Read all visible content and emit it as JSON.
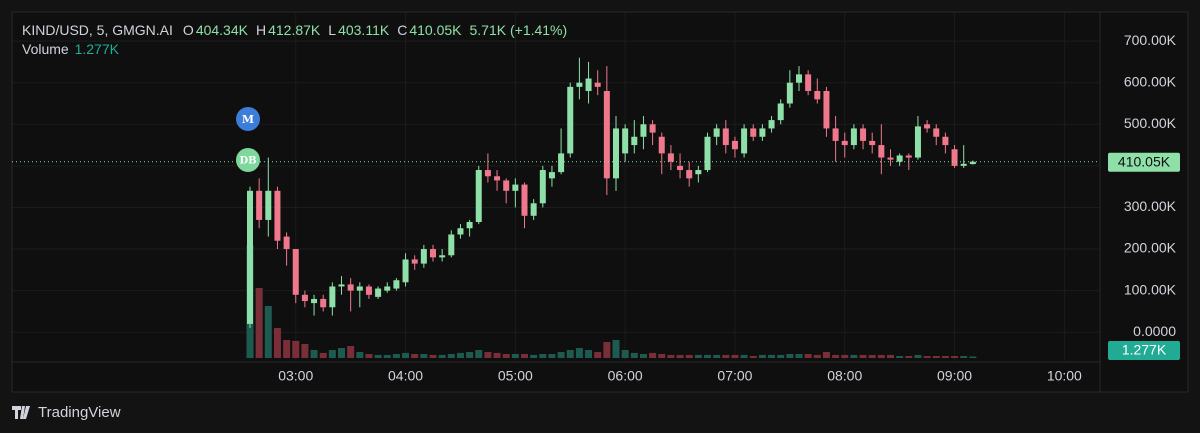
{
  "chart_data": {
    "type": "candlestick",
    "title": "KIND/USD, 5, GMGN.AI",
    "ohlc_legend": [
      {
        "label": "O",
        "value": "404.34K"
      },
      {
        "label": "H",
        "value": "412.87K"
      },
      {
        "label": "L",
        "value": "403.11K"
      },
      {
        "label": "C",
        "value": "410.05K"
      }
    ],
    "change": "5.71K (+1.41%)",
    "volume_title": "Volume",
    "volume_last": "1.277K",
    "annotations": [
      "M",
      "DB"
    ],
    "last_price": {
      "value": 410050,
      "label": "410.05K"
    },
    "up_color": "#8fe0a8",
    "down_color": "#f0788c",
    "volume_up_color": "#1d5a50",
    "volume_down_color": "#7a2f38",
    "grid": true,
    "categories": [
      null,
      null,
      null,
      null,
      null,
      "03:00",
      null,
      null,
      null,
      null,
      null,
      null,
      null,
      null,
      null,
      null,
      null,
      "04:00",
      null,
      null,
      null,
      null,
      null,
      null,
      null,
      null,
      null,
      null,
      null,
      "05:00",
      null,
      null,
      null,
      null,
      null,
      null,
      null,
      null,
      null,
      null,
      null,
      "06:00",
      null,
      null,
      null,
      null,
      null,
      null,
      null,
      null,
      null,
      null,
      null,
      "07:00",
      null,
      null,
      null,
      null,
      null,
      null,
      null,
      null,
      null,
      null,
      null,
      "08:00",
      null,
      null,
      null,
      null,
      null,
      null,
      null,
      null,
      null,
      null,
      null,
      "09:00",
      null,
      null,
      null,
      null,
      null,
      null,
      null,
      null,
      null,
      null,
      null,
      "10:00"
    ],
    "open": [
      20000,
      340000,
      270000,
      340000,
      230000,
      200000,
      90000,
      70000,
      80000,
      60000,
      110000,
      115000,
      100000,
      110000,
      85000,
      100000,
      105000,
      120000,
      175000,
      165000,
      200000,
      180000,
      185000,
      235000,
      250000,
      265000,
      390000,
      375000,
      365000,
      340000,
      355000,
      280000,
      310000,
      370000,
      385000,
      430000,
      590000,
      580000,
      600000,
      580000,
      370000,
      430000,
      450000,
      470000,
      500000,
      470000,
      430000,
      400000,
      390000,
      380000,
      390000,
      470000,
      490000,
      460000,
      430000,
      490000,
      470000,
      490000,
      510000,
      550000,
      600000,
      620000,
      580000,
      580000,
      490000,
      460000,
      450000,
      490000,
      460000,
      450000,
      420000,
      410000,
      425000,
      420000,
      500000,
      490000,
      470000,
      440000,
      400000,
      404340,
      null,
      null,
      null,
      null,
      null,
      null,
      null,
      null,
      null,
      null
    ],
    "high": [
      350000,
      370000,
      420000,
      350000,
      240000,
      200000,
      100000,
      90000,
      90000,
      120000,
      135000,
      130000,
      120000,
      115000,
      110000,
      120000,
      130000,
      190000,
      185000,
      210000,
      210000,
      200000,
      245000,
      260000,
      270000,
      400000,
      430000,
      390000,
      370000,
      370000,
      360000,
      320000,
      400000,
      400000,
      490000,
      600000,
      660000,
      650000,
      630000,
      640000,
      520000,
      500000,
      510000,
      520000,
      510000,
      480000,
      450000,
      430000,
      410000,
      400000,
      480000,
      500000,
      510000,
      470000,
      500000,
      500000,
      500000,
      520000,
      560000,
      630000,
      640000,
      630000,
      610000,
      590000,
      520000,
      480000,
      500000,
      500000,
      480000,
      500000,
      440000,
      430000,
      430000,
      520000,
      510000,
      500000,
      480000,
      450000,
      450000,
      412870,
      null,
      null,
      null,
      null,
      null,
      null,
      null,
      null,
      null,
      null
    ],
    "low": [
      10000,
      250000,
      230000,
      200000,
      160000,
      70000,
      60000,
      40000,
      50000,
      40000,
      90000,
      50000,
      60000,
      80000,
      80000,
      95000,
      100000,
      110000,
      150000,
      155000,
      170000,
      170000,
      180000,
      225000,
      230000,
      260000,
      360000,
      340000,
      310000,
      300000,
      250000,
      270000,
      300000,
      350000,
      380000,
      420000,
      560000,
      550000,
      570000,
      330000,
      340000,
      410000,
      430000,
      440000,
      450000,
      380000,
      390000,
      370000,
      350000,
      360000,
      385000,
      450000,
      430000,
      420000,
      420000,
      460000,
      460000,
      480000,
      500000,
      540000,
      580000,
      570000,
      550000,
      470000,
      410000,
      420000,
      440000,
      440000,
      430000,
      380000,
      400000,
      400000,
      390000,
      415000,
      480000,
      450000,
      430000,
      395000,
      395000,
      403110,
      null,
      null,
      null,
      null,
      null,
      null,
      null,
      null,
      null,
      null
    ],
    "close": [
      340000,
      270000,
      340000,
      220000,
      200000,
      90000,
      75000,
      80000,
      60000,
      110000,
      115000,
      100000,
      110000,
      90000,
      105000,
      110000,
      125000,
      175000,
      165000,
      200000,
      180000,
      185000,
      235000,
      250000,
      265000,
      390000,
      375000,
      365000,
      340000,
      355000,
      280000,
      310000,
      390000,
      385000,
      430000,
      590000,
      600000,
      610000,
      590000,
      370000,
      490000,
      490000,
      470000,
      500000,
      480000,
      430000,
      410000,
      390000,
      370000,
      390000,
      470000,
      490000,
      450000,
      440000,
      490000,
      470000,
      490000,
      510000,
      550000,
      600000,
      620000,
      580000,
      560000,
      490000,
      460000,
      450000,
      490000,
      460000,
      450000,
      420000,
      415000,
      425000,
      420000,
      495000,
      490000,
      470000,
      450000,
      400000,
      405000,
      410050,
      null,
      null,
      null,
      null,
      null,
      null,
      null,
      null,
      null,
      null
    ],
    "volume": [
      96000,
      59500,
      44200,
      25500,
      15300,
      14500,
      11900,
      6800,
      4300,
      6800,
      8500,
      10200,
      5100,
      3400,
      2600,
      2600,
      3400,
      4300,
      3400,
      3400,
      2600,
      2600,
      3400,
      4300,
      5100,
      6800,
      5100,
      4300,
      3400,
      3400,
      3400,
      2600,
      3400,
      3400,
      5100,
      6800,
      8500,
      6800,
      5100,
      13600,
      15300,
      6800,
      4300,
      3400,
      4300,
      3400,
      2600,
      2600,
      2600,
      2600,
      2600,
      2600,
      2600,
      2600,
      2600,
      1700,
      2600,
      2600,
      2600,
      3400,
      3400,
      3400,
      2600,
      5100,
      2600,
      2600,
      2600,
      2600,
      2600,
      2600,
      2600,
      1700,
      1700,
      2600,
      1700,
      1700,
      1700,
      1700,
      1700,
      1277,
      null,
      null,
      null,
      null,
      null,
      null,
      null,
      null,
      null,
      null
    ],
    "ylim": [
      -62000,
      770000
    ],
    "yticks": [
      {
        "value": 0,
        "label": "0.0000"
      },
      {
        "value": 100000,
        "label": "100.00K"
      },
      {
        "value": 200000,
        "label": "200.00K"
      },
      {
        "value": 300000,
        "label": "300.00K"
      },
      {
        "value": 400000,
        "label": "400.00K"
      },
      {
        "value": 500000,
        "label": "500.00K"
      },
      {
        "value": 600000,
        "label": "600.00K"
      },
      {
        "value": 700000,
        "label": "700.00K"
      }
    ]
  },
  "footer": {
    "brand": "TradingView"
  }
}
